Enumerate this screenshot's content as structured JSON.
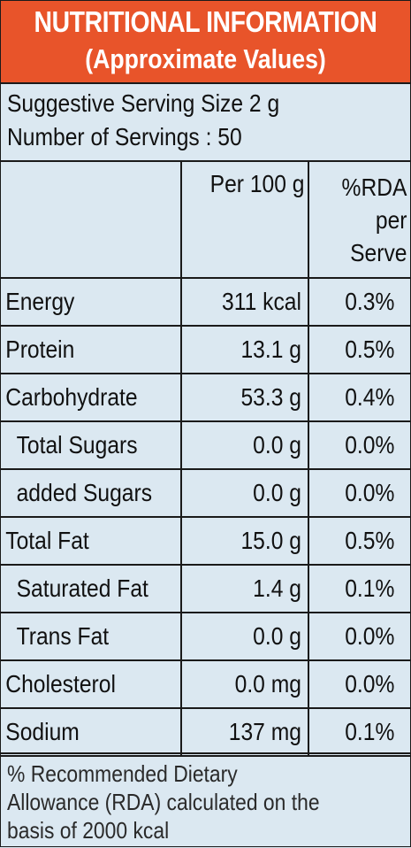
{
  "header": {
    "title": "NUTRITIONAL INFORMATION",
    "subtitle": "(Approximate Values)",
    "background_color": "#e8542a",
    "text_color": "#ffffff"
  },
  "serving": {
    "size_line": "Suggestive Serving Size  2 g",
    "count_line": "Number of Servings : 50"
  },
  "table": {
    "col_per100": "Per 100 g",
    "col_rda_line1": "%RDA",
    "col_rda_line2": "per",
    "col_rda_line3": "Serve",
    "rows": [
      {
        "name": "Energy",
        "per100": "311 kcal",
        "rda": "0.3%"
      },
      {
        "name": "Protein",
        "per100": "13.1 g",
        "rda": "0.5%"
      },
      {
        "name": "Carbohydrate",
        "per100": "53.3 g",
        "rda": "0.4%"
      },
      {
        "name": "Total Sugars",
        "per100": "0.0 g",
        "rda": "0.0%"
      },
      {
        "name": "added Sugars",
        "per100": "0.0 g",
        "rda": "0.0%"
      },
      {
        "name": "Total Fat",
        "per100": "15.0 g",
        "rda": "0.5%"
      },
      {
        "name": "Saturated Fat",
        "per100": "1.4 g",
        "rda": "0.1%"
      },
      {
        "name": "Trans Fat",
        "per100": "0.0 g",
        "rda": "0.0%"
      },
      {
        "name": "Cholesterol",
        "per100": "0.0 mg",
        "rda": "0.0%"
      },
      {
        "name": "Sodium",
        "per100": "137 mg",
        "rda": "0.1%"
      }
    ]
  },
  "footnote": {
    "line1": "% Recommended Dietary",
    "line2": "Allowance (RDA) calculated on the",
    "line3": "basis of 2000 kcal"
  },
  "panel_color": "#dbe8f1"
}
